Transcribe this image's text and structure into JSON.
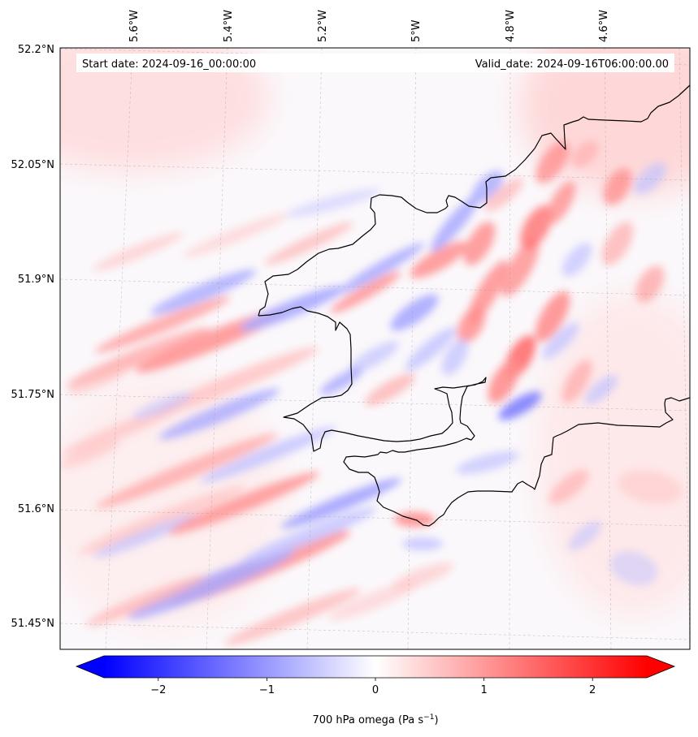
{
  "header": {
    "start_date": "Start date: 2024-09-16_00:00:00",
    "valid_date": "Valid_date: 2024-09-16T06:00:00.00"
  },
  "map": {
    "longitude_labels": [
      "5.6°W",
      "5.4°W",
      "5.2°W",
      "5°W",
      "4.8°W",
      "4.6°W"
    ],
    "latitude_labels": [
      "52.2°N",
      "52.05°N",
      "51.9°N",
      "51.75°N",
      "51.6°N",
      "51.45°N"
    ],
    "gridlines": true,
    "gridline_style": "dashed",
    "coastline_color": "#000000"
  },
  "colorbar": {
    "label": "700 hPa omega (Pa s",
    "label_superscript": "−1",
    "label_suffix": ")",
    "ticks": [
      "−2",
      "−1",
      "0",
      "1",
      "2"
    ],
    "tick_values": [
      -2,
      -1,
      0,
      1,
      2
    ],
    "range": [
      -2.5,
      2.5
    ],
    "extend": "both",
    "colormap": "bwr",
    "colors": {
      "low": "#0000ff",
      "mid": "#ffffff",
      "high": "#ff0000"
    }
  }
}
